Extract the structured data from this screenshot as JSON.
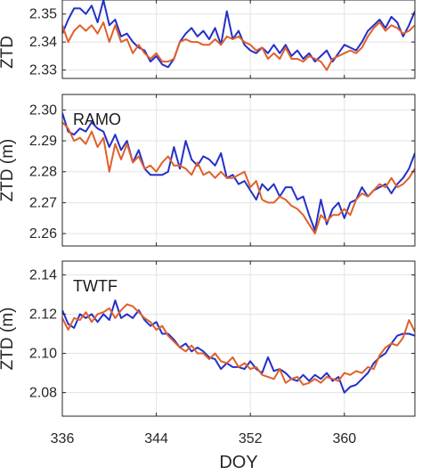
{
  "chart_data": [
    {
      "type": "line",
      "station": "",
      "ylabel": "ZTD",
      "xlabel": "",
      "ylim": [
        2.327,
        2.355
      ],
      "yticks": [
        2.33,
        2.34,
        2.35
      ],
      "xlim": [
        336,
        366
      ],
      "xticks": [
        336,
        344,
        352,
        360
      ],
      "grid": true,
      "series": [
        {
          "color": "#2430c8",
          "x": [
            336,
            336.5,
            337,
            337.5,
            338,
            338.5,
            339,
            339.5,
            340,
            340.5,
            341,
            341.5,
            342,
            342.5,
            343,
            343.5,
            344,
            344.5,
            345,
            345.5,
            346,
            346.5,
            347,
            347.5,
            348,
            348.5,
            349,
            349.5,
            350,
            350.5,
            351,
            351.5,
            352,
            352.5,
            353,
            353.5,
            354,
            354.5,
            355,
            355.5,
            356,
            356.5,
            357,
            357.5,
            358,
            358.5,
            359,
            359.5,
            360,
            360.5,
            361,
            361.5,
            362,
            362.5,
            363,
            363.5,
            364,
            364.5,
            365,
            365.5,
            366
          ],
          "y": [
            2.343,
            2.348,
            2.352,
            2.352,
            2.35,
            2.353,
            2.347,
            2.355,
            2.346,
            2.348,
            2.342,
            2.343,
            2.34,
            2.338,
            2.337,
            2.333,
            2.335,
            2.332,
            2.331,
            2.334,
            2.34,
            2.343,
            2.345,
            2.342,
            2.344,
            2.341,
            2.345,
            2.339,
            2.351,
            2.341,
            2.344,
            2.339,
            2.337,
            2.336,
            2.338,
            2.336,
            2.339,
            2.336,
            2.339,
            2.335,
            2.337,
            2.334,
            2.336,
            2.333,
            2.335,
            2.337,
            2.333,
            2.336,
            2.339,
            2.338,
            2.337,
            2.34,
            2.344,
            2.346,
            2.348,
            2.345,
            2.349,
            2.347,
            2.342,
            2.346,
            2.351
          ]
        },
        {
          "color": "#e0602a",
          "x": [
            336,
            336.5,
            337,
            337.5,
            338,
            338.5,
            339,
            339.5,
            340,
            340.5,
            341,
            341.5,
            342,
            342.5,
            343,
            343.5,
            344,
            344.5,
            345,
            345.5,
            346,
            346.5,
            347,
            347.5,
            348,
            348.5,
            349,
            349.5,
            350,
            350.5,
            351,
            351.5,
            352,
            352.5,
            353,
            353.5,
            354,
            354.5,
            355,
            355.5,
            356,
            356.5,
            357,
            357.5,
            358,
            358.5,
            359,
            359.5,
            360,
            360.5,
            361,
            361.5,
            362,
            362.5,
            363,
            363.5,
            364,
            364.5,
            365,
            365.5,
            366
          ],
          "y": [
            2.346,
            2.34,
            2.344,
            2.346,
            2.344,
            2.346,
            2.343,
            2.347,
            2.34,
            2.346,
            2.34,
            2.341,
            2.336,
            2.339,
            2.336,
            2.334,
            2.336,
            2.333,
            2.333,
            2.334,
            2.34,
            2.341,
            2.34,
            2.34,
            2.339,
            2.339,
            2.341,
            2.339,
            2.342,
            2.341,
            2.342,
            2.34,
            2.339,
            2.337,
            2.338,
            2.334,
            2.336,
            2.334,
            2.338,
            2.334,
            2.334,
            2.333,
            2.335,
            2.334,
            2.333,
            2.33,
            2.334,
            2.335,
            2.336,
            2.337,
            2.336,
            2.338,
            2.342,
            2.345,
            2.347,
            2.344,
            2.346,
            2.345,
            2.343,
            2.344,
            2.346
          ]
        }
      ]
    },
    {
      "type": "line",
      "station": "RAMO",
      "ylabel": "ZTD (m)",
      "xlabel": "",
      "ylim": [
        2.256,
        2.305
      ],
      "yticks": [
        2.26,
        2.27,
        2.28,
        2.29,
        2.3
      ],
      "xlim": [
        336,
        366
      ],
      "xticks": [
        336,
        344,
        352,
        360
      ],
      "grid": true,
      "series": [
        {
          "color": "#2430c8",
          "x": [
            336,
            336.5,
            337,
            337.5,
            338,
            338.5,
            339,
            339.5,
            340,
            340.5,
            341,
            341.5,
            342,
            342.5,
            343,
            343.5,
            344,
            344.5,
            345,
            345.5,
            346,
            346.5,
            347,
            347.5,
            348,
            348.5,
            349,
            349.5,
            350,
            350.5,
            351,
            351.5,
            352,
            352.5,
            353,
            353.5,
            354,
            354.5,
            355,
            355.5,
            356,
            356.5,
            357,
            357.5,
            358,
            358.5,
            359,
            359.5,
            360,
            360.5,
            361,
            361.5,
            362,
            362.5,
            363,
            363.5,
            364,
            364.5,
            365,
            365.5,
            366
          ],
          "y": [
            2.299,
            2.293,
            2.292,
            2.294,
            2.293,
            2.296,
            2.294,
            2.293,
            2.288,
            2.292,
            2.287,
            2.29,
            2.283,
            2.287,
            2.281,
            2.279,
            2.279,
            2.279,
            2.28,
            2.288,
            2.281,
            2.29,
            2.284,
            2.282,
            2.285,
            2.284,
            2.282,
            2.286,
            2.278,
            2.279,
            2.276,
            2.277,
            2.274,
            2.271,
            2.276,
            2.274,
            2.276,
            2.272,
            2.275,
            2.275,
            2.271,
            2.272,
            2.266,
            2.261,
            2.271,
            2.263,
            2.268,
            2.27,
            2.265,
            2.27,
            2.271,
            2.275,
            2.272,
            2.274,
            2.275,
            2.276,
            2.273,
            2.276,
            2.278,
            2.281,
            2.286
          ]
        },
        {
          "color": "#e0602a",
          "x": [
            336,
            336.5,
            337,
            337.5,
            338,
            338.5,
            339,
            339.5,
            340,
            340.5,
            341,
            341.5,
            342,
            342.5,
            343,
            343.5,
            344,
            344.5,
            345,
            345.5,
            346,
            346.5,
            347,
            347.5,
            348,
            348.5,
            349,
            349.5,
            350,
            350.5,
            351,
            351.5,
            352,
            352.5,
            353,
            353.5,
            354,
            354.5,
            355,
            355.5,
            356,
            356.5,
            357,
            357.5,
            358,
            358.5,
            359,
            359.5,
            360,
            360.5,
            361,
            361.5,
            362,
            362.5,
            363,
            363.5,
            364,
            364.5,
            365,
            365.5,
            366
          ],
          "y": [
            2.296,
            2.294,
            2.29,
            2.291,
            2.289,
            2.293,
            2.288,
            2.291,
            2.28,
            2.289,
            2.284,
            2.289,
            2.283,
            2.285,
            2.281,
            2.282,
            2.28,
            2.283,
            2.285,
            2.282,
            2.282,
            2.281,
            2.279,
            2.283,
            2.279,
            2.28,
            2.278,
            2.28,
            2.278,
            2.278,
            2.279,
            2.28,
            2.275,
            2.277,
            2.271,
            2.27,
            2.27,
            2.272,
            2.271,
            2.269,
            2.268,
            2.266,
            2.263,
            2.26,
            2.266,
            2.264,
            2.266,
            2.266,
            2.268,
            2.266,
            2.271,
            2.273,
            2.272,
            2.274,
            2.276,
            2.275,
            2.278,
            2.275,
            2.276,
            2.278,
            2.281
          ]
        }
      ]
    },
    {
      "type": "line",
      "station": "TWTF",
      "ylabel": "ZTD (m)",
      "xlabel": "DOY",
      "ylim": [
        2.068,
        2.147
      ],
      "yticks": [
        2.08,
        2.1,
        2.12,
        2.14
      ],
      "xlim": [
        336,
        366
      ],
      "xticks": [
        336,
        344,
        352,
        360
      ],
      "grid": true,
      "series": [
        {
          "color": "#2430c8",
          "x": [
            336,
            336.5,
            337,
            337.5,
            338,
            338.5,
            339,
            339.5,
            340,
            340.5,
            341,
            341.5,
            342,
            342.5,
            343,
            343.5,
            344,
            344.5,
            345,
            345.5,
            346,
            346.5,
            347,
            347.5,
            348,
            348.5,
            349,
            349.5,
            350,
            350.5,
            351,
            351.5,
            352,
            352.5,
            353,
            353.5,
            354,
            354.5,
            355,
            355.5,
            356,
            356.5,
            357,
            357.5,
            358,
            358.5,
            359,
            359.5,
            360,
            360.5,
            361,
            361.5,
            362,
            362.5,
            363,
            363.5,
            364,
            364.5,
            365,
            365.5,
            366
          ],
          "y": [
            2.122,
            2.115,
            2.113,
            2.12,
            2.118,
            2.12,
            2.116,
            2.12,
            2.117,
            2.127,
            2.118,
            2.12,
            2.118,
            2.122,
            2.117,
            2.114,
            2.116,
            2.11,
            2.11,
            2.107,
            2.103,
            2.105,
            2.101,
            2.103,
            2.101,
            2.098,
            2.097,
            2.092,
            2.095,
            2.093,
            2.093,
            2.092,
            2.096,
            2.092,
            2.09,
            2.098,
            2.091,
            2.092,
            2.09,
            2.087,
            2.086,
            2.089,
            2.086,
            2.089,
            2.087,
            2.09,
            2.086,
            2.088,
            2.08,
            2.083,
            2.084,
            2.087,
            2.09,
            2.095,
            2.098,
            2.1,
            2.105,
            2.109,
            2.11,
            2.11,
            2.109
          ]
        },
        {
          "color": "#e0602a",
          "x": [
            336,
            336.5,
            337,
            337.5,
            338,
            338.5,
            339,
            339.5,
            340,
            340.5,
            341,
            341.5,
            342,
            342.5,
            343,
            343.5,
            344,
            344.5,
            345,
            345.5,
            346,
            346.5,
            347,
            347.5,
            348,
            348.5,
            349,
            349.5,
            350,
            350.5,
            351,
            351.5,
            352,
            352.5,
            353,
            353.5,
            354,
            354.5,
            355,
            355.5,
            356,
            356.5,
            357,
            357.5,
            358,
            358.5,
            359,
            359.5,
            360,
            360.5,
            361,
            361.5,
            362,
            362.5,
            363,
            363.5,
            364,
            364.5,
            365,
            365.5,
            366
          ],
          "y": [
            2.118,
            2.112,
            2.118,
            2.117,
            2.121,
            2.116,
            2.12,
            2.121,
            2.123,
            2.118,
            2.122,
            2.125,
            2.124,
            2.121,
            2.118,
            2.116,
            2.112,
            2.114,
            2.109,
            2.106,
            2.103,
            2.101,
            2.104,
            2.1,
            2.1,
            2.097,
            2.1,
            2.096,
            2.095,
            2.098,
            2.093,
            2.095,
            2.092,
            2.093,
            2.089,
            2.088,
            2.087,
            2.092,
            2.085,
            2.087,
            2.088,
            2.084,
            2.085,
            2.087,
            2.085,
            2.088,
            2.087,
            2.086,
            2.09,
            2.089,
            2.091,
            2.09,
            2.093,
            2.092,
            2.099,
            2.103,
            2.105,
            2.104,
            2.108,
            2.117,
            2.111
          ]
        }
      ]
    }
  ]
}
